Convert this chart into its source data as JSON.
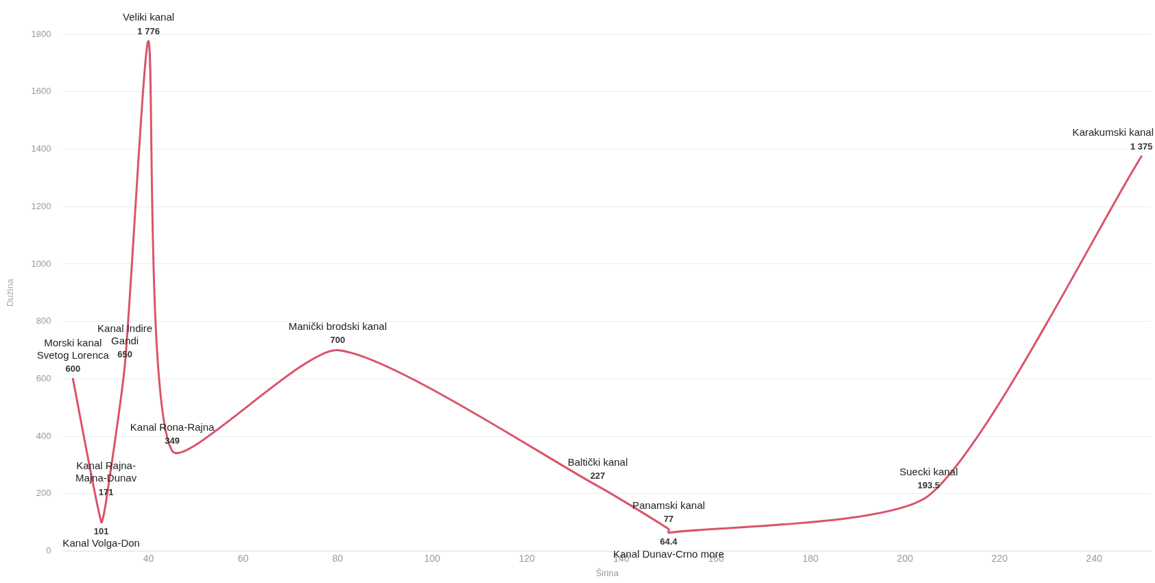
{
  "chart_data": {
    "type": "line",
    "xlabel": "Širina",
    "ylabel": "Dužina",
    "x": [
      24,
      30,
      31,
      35,
      40,
      45,
      80,
      135,
      150,
      150,
      205,
      250
    ],
    "series": [
      {
        "color": "#d9546a",
        "values": [
          600,
          101,
          171,
          650,
          1776,
          349,
          700,
          227,
          77,
          64.4,
          193.5,
          1375
        ],
        "value_labels": [
          "600",
          "101",
          "171",
          "650",
          "1 776",
          "349",
          "700",
          "227",
          "77",
          "64.4",
          "193.5",
          "1 375"
        ]
      }
    ],
    "annotations": [
      {
        "text": "Morski kanal\nSvetog Lorenca",
        "x": 24,
        "y": 600
      },
      {
        "text": "Kanal Volga-Don",
        "x": 30,
        "y": 101
      },
      {
        "text": "Kanal Rajna-\nMajna-Dunav",
        "x": 31,
        "y": 171
      },
      {
        "text": "Kanal Indire\nGandi",
        "x": 35,
        "y": 650
      },
      {
        "text": "Veliki kanal",
        "x": 40,
        "y": 1776
      },
      {
        "text": "Kanal Rona-Rajna",
        "x": 45,
        "y": 349
      },
      {
        "text": "Manički brodski kanal",
        "x": 80,
        "y": 700
      },
      {
        "text": "Baltički kanal",
        "x": 135,
        "y": 227
      },
      {
        "text": "Panamski kanal",
        "x": 150,
        "y": 77
      },
      {
        "text": "Kanal Dunav-Crno more",
        "x": 150,
        "y": 64.4
      },
      {
        "text": "Suecki kanal",
        "x": 205,
        "y": 193.5
      },
      {
        "text": "Karakumski kanal",
        "x": 250,
        "y": 1375
      }
    ],
    "xlim": [
      22,
      252
    ],
    "xticks": [
      40,
      60,
      80,
      100,
      120,
      140,
      160,
      180,
      200,
      220,
      240
    ],
    "ylim": [
      0,
      1800
    ],
    "yticks": [
      0,
      200,
      400,
      600,
      800,
      1000,
      1200,
      1400,
      1600,
      1800
    ],
    "grid": "y",
    "legend": false,
    "marker": "none",
    "line_style": "solid"
  }
}
